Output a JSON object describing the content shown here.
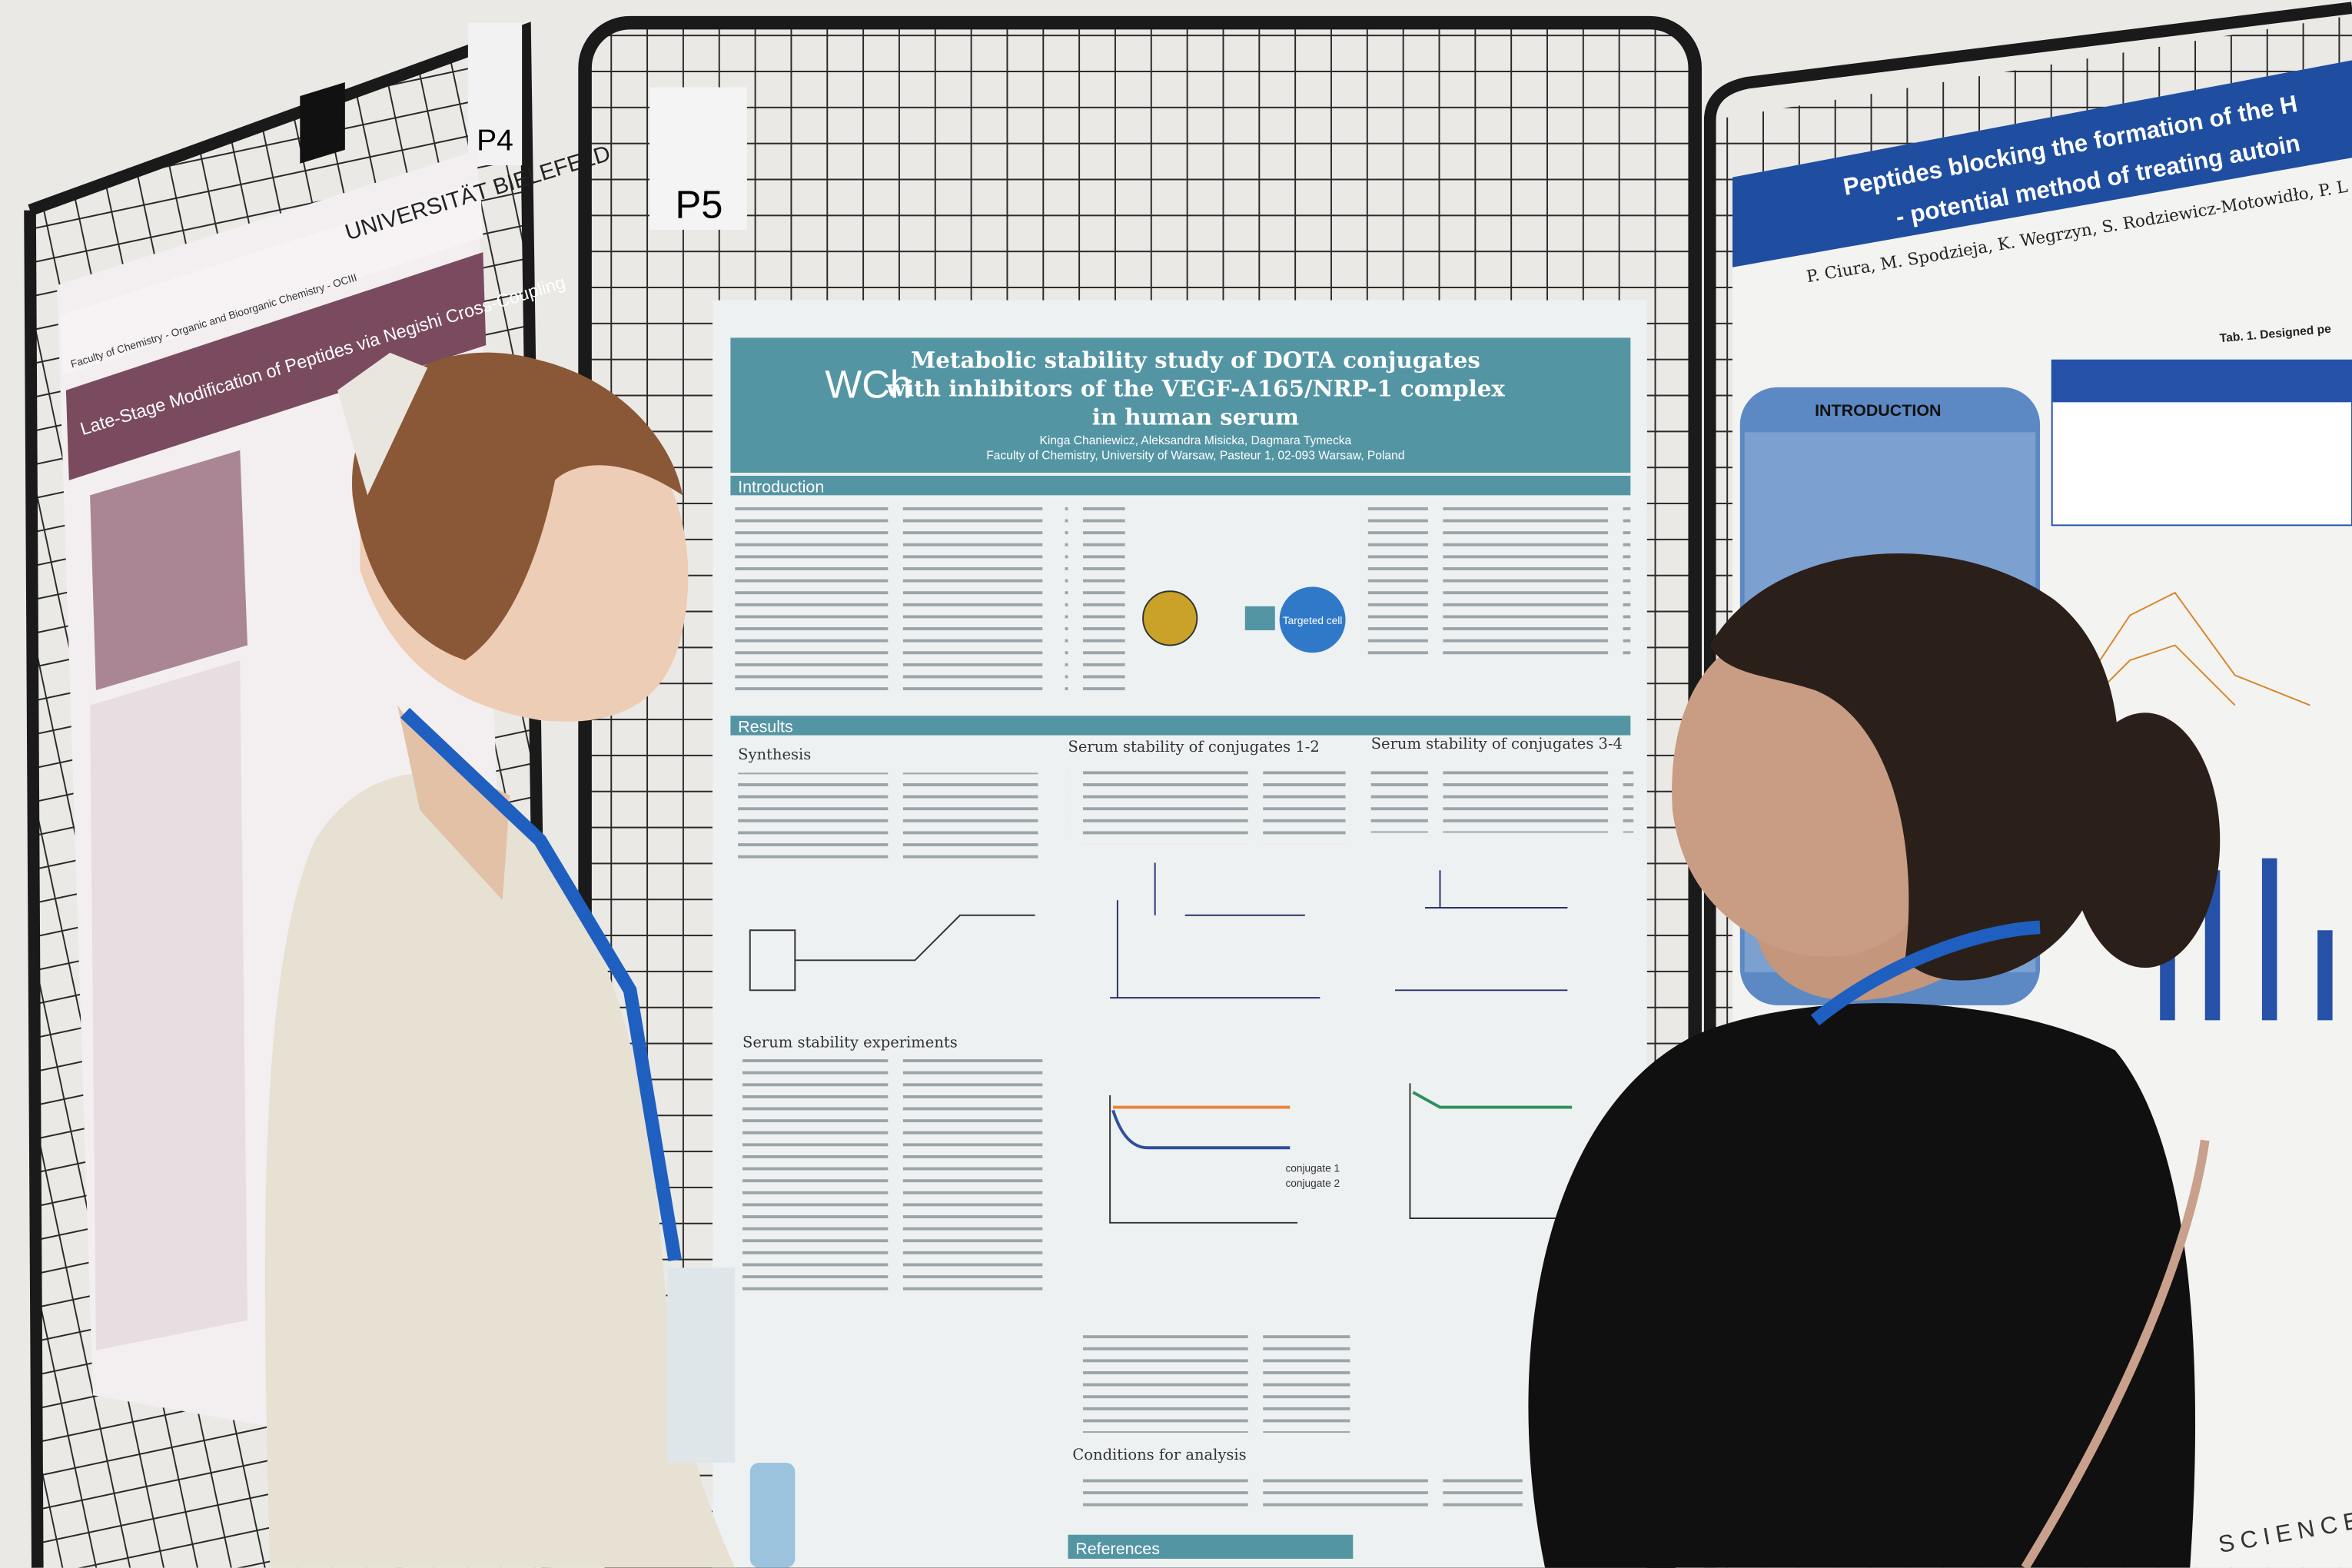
{
  "boards": {
    "left_label": "P4",
    "center_label": "P5"
  },
  "left_poster": {
    "university": "UNIVERSITÄT BIELEFELD",
    "faculty": "Faculty of Chemistry - Organic and Bioorganic Chemistry - OCIII",
    "title": "Late-Stage Modification of Peptides via Negishi Cross-Coupling"
  },
  "center_poster": {
    "logo": "WCh",
    "title_lines": [
      "Metabolic stability study of DOTA conjugates",
      "with inhibitors of the VEGF-A165/NRP-1 complex",
      "in human serum"
    ],
    "authors": "Kinga Chaniewicz, Aleksandra Misicka, Dagmara Tymecka",
    "affiliation": "Faculty of Chemistry, University of Warsaw, Pasteur 1, 02-093 Warsaw, Poland",
    "sections": [
      "Introduction",
      "Results",
      "Synthesis",
      "Serum stability of conjugates 1-2",
      "Serum stability of conjugates 3-4",
      "Serum stability experiments",
      "Conditions for analysis",
      "References"
    ],
    "figure_label": "Targeted cell",
    "legend": [
      "conjugate 1",
      "conjugate 2"
    ]
  },
  "right_poster": {
    "title_lines": [
      "Peptides blocking the formation of the H",
      "- potential method of treating autoin"
    ],
    "authors": "P. Ciura, M. Spodzieja, K. Wegrzyn, S. Rodziewicz-Motowidło, P. L",
    "intro": "INTRODUCTION",
    "table_caption": "Tab. 1. Designed pe",
    "footer": "SCIENCE"
  }
}
